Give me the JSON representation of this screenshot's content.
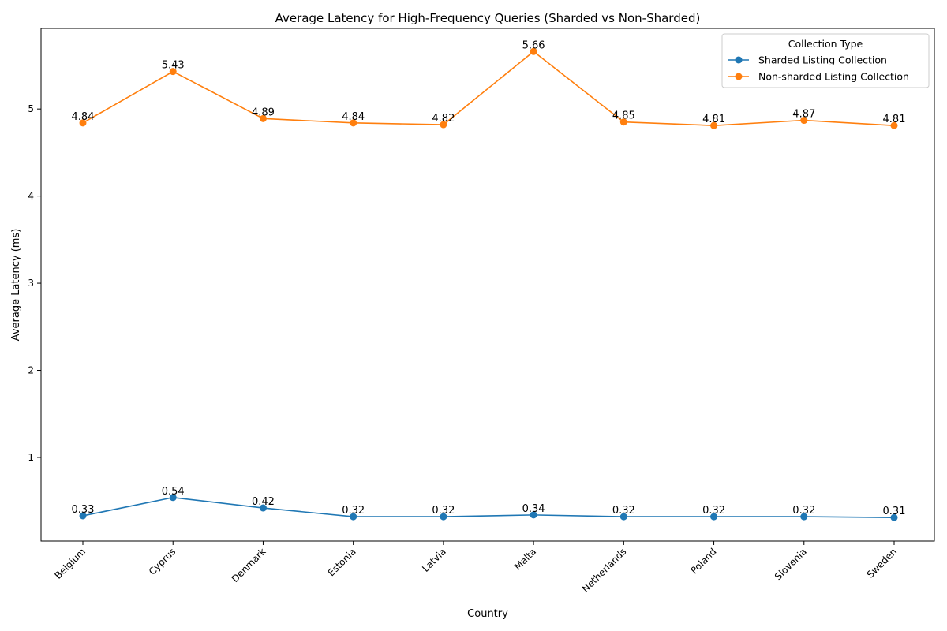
{
  "chart_data": {
    "type": "line",
    "title": "Average Latency for High-Frequency Queries (Sharded vs Non-Sharded)",
    "xlabel": "Country",
    "ylabel": "Average Latency (ms)",
    "categories": [
      "Belgium",
      "Cyprus",
      "Denmark",
      "Estonia",
      "Latvia",
      "Malta",
      "Netherlands",
      "Poland",
      "Slovenia",
      "Sweden"
    ],
    "ylim": [
      0.04,
      5.925
    ],
    "yticks": [
      1,
      2,
      3,
      4,
      5
    ],
    "grid": false,
    "legend": {
      "title": "Collection Type",
      "placement": "top-right"
    },
    "series": [
      {
        "name": "Sharded Listing Collection",
        "color": "#1f77b4",
        "values": [
          0.33,
          0.54,
          0.42,
          0.32,
          0.32,
          0.34,
          0.32,
          0.32,
          0.32,
          0.31
        ],
        "labels": [
          "0.33",
          "0.54",
          "0.42",
          "0.32",
          "0.32",
          "0.34",
          "0.32",
          "0.32",
          "0.32",
          "0.31"
        ]
      },
      {
        "name": "Non-sharded Listing Collection",
        "color": "#ff7f0e",
        "values": [
          4.84,
          5.43,
          4.89,
          4.84,
          4.82,
          5.66,
          4.85,
          4.81,
          4.87,
          4.81
        ],
        "labels": [
          "4.84",
          "5.43",
          "4.89",
          "4.84",
          "4.82",
          "5.66",
          "4.85",
          "4.81",
          "4.87",
          "4.81"
        ]
      }
    ]
  }
}
